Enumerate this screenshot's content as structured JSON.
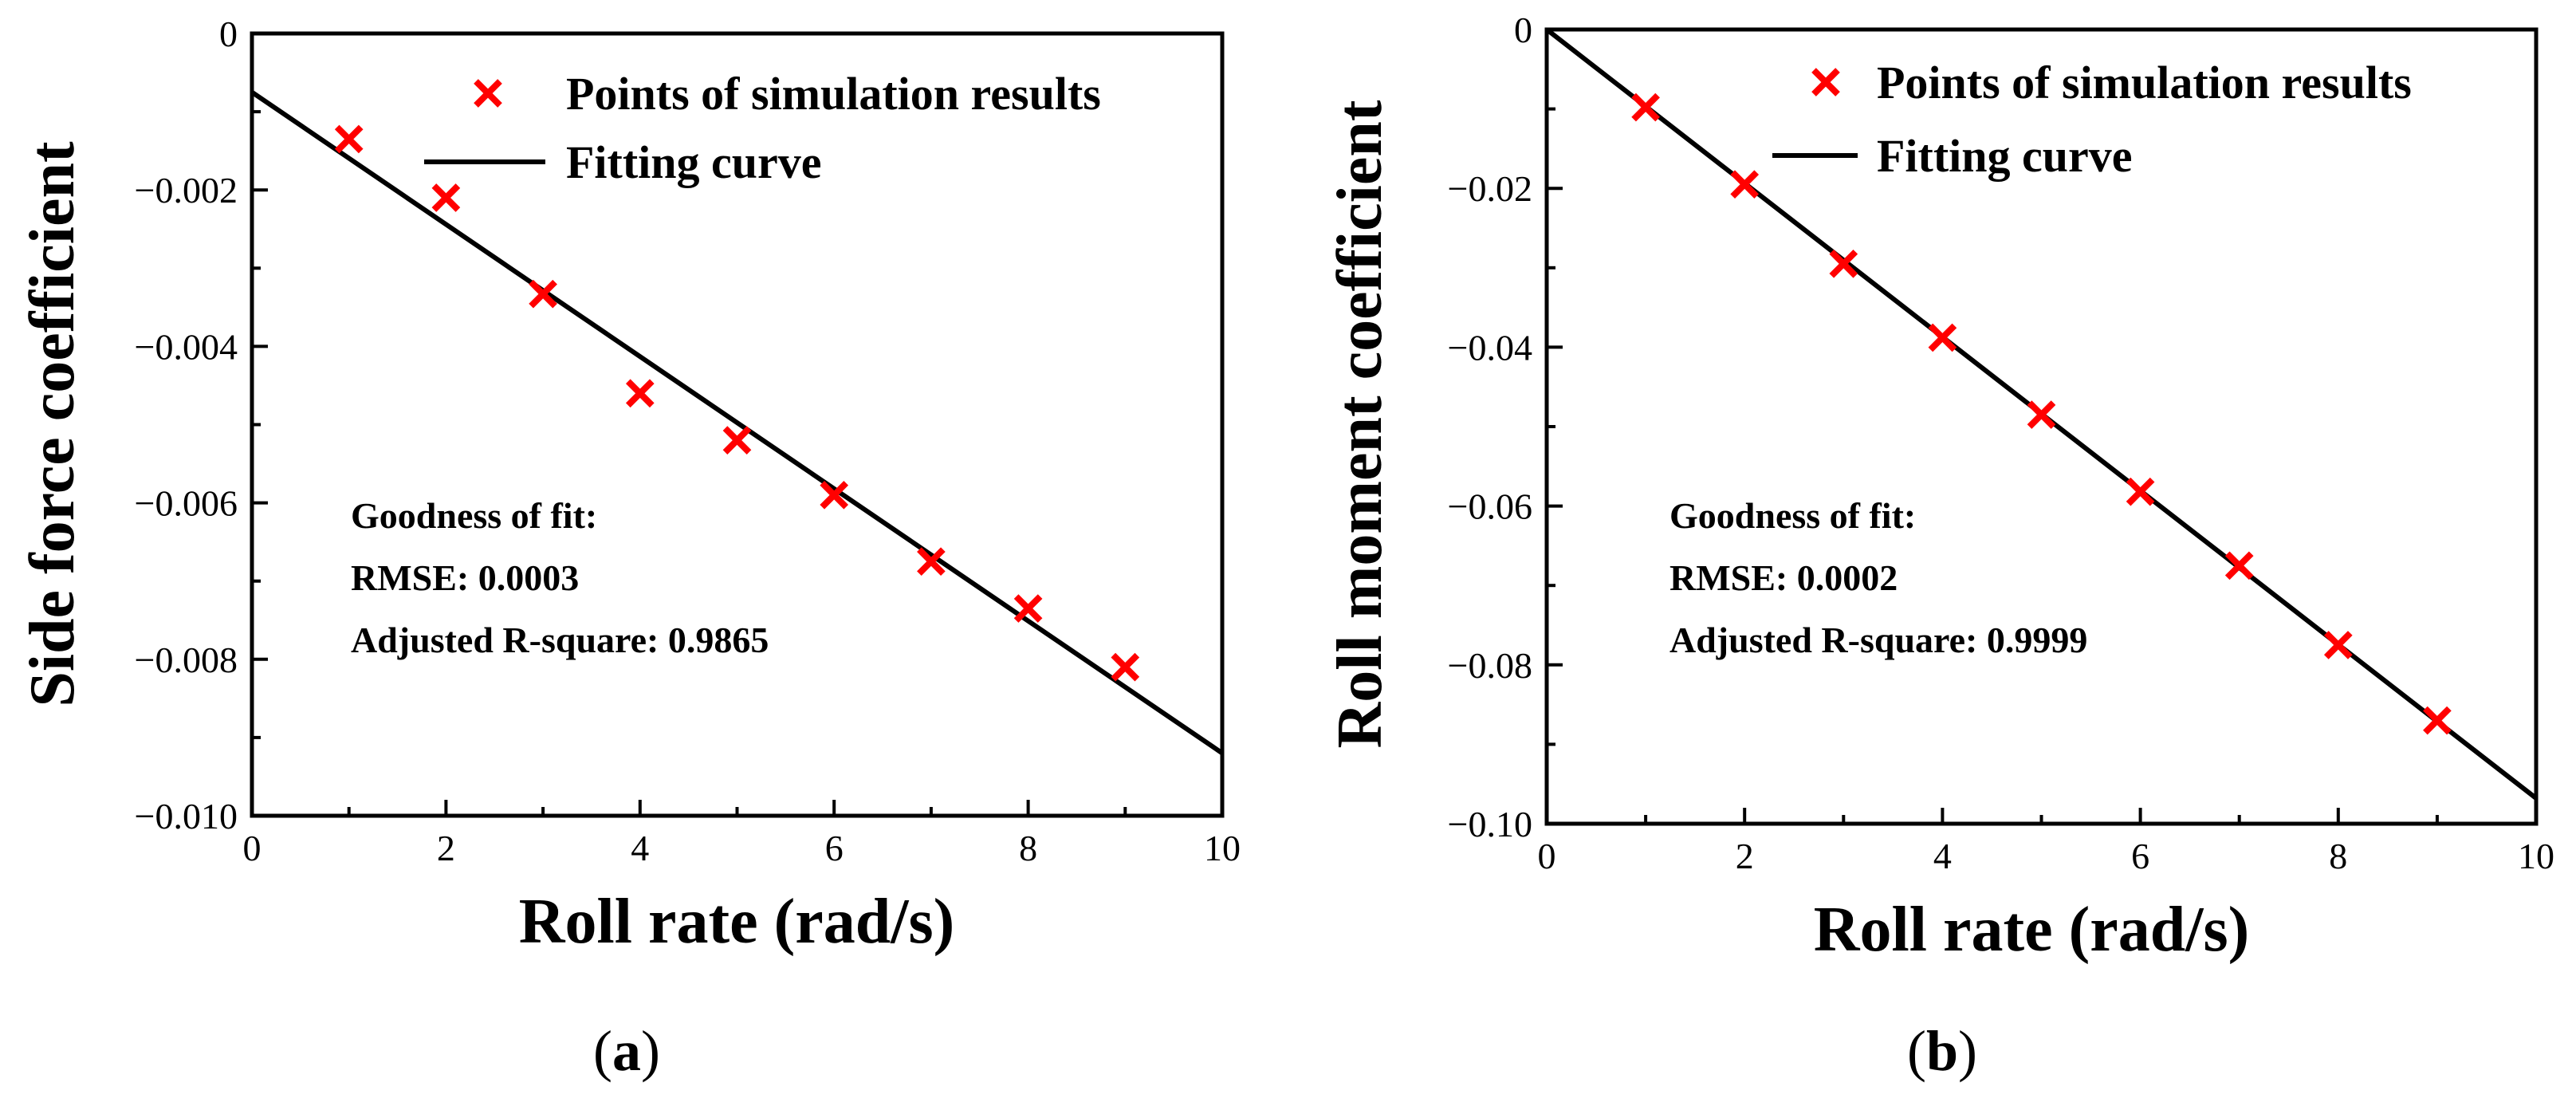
{
  "colors": {
    "marker": "#ff0000",
    "line": "#000000",
    "axis": "#000000"
  },
  "chart_data": [
    {
      "type": "scatter",
      "panel_label": "a",
      "xlabel": "Roll rate (rad/s)",
      "ylabel": "Side force coefficient",
      "xlim": [
        0,
        10
      ],
      "ylim": [
        -0.01,
        0
      ],
      "xticks": [
        "0",
        "2",
        "4",
        "6",
        "8",
        "10"
      ],
      "yticks": [
        "0",
        "−0.002",
        "−0.004",
        "−0.006",
        "−0.008",
        "−0.010"
      ],
      "series": [
        {
          "name": "Points of simulation results",
          "type": "scatter",
          "marker": "x",
          "x": [
            1,
            2,
            3,
            4,
            5,
            6,
            7,
            8,
            9
          ],
          "y": [
            -0.00135,
            -0.0021,
            -0.00333,
            -0.0046,
            -0.0052,
            -0.0059,
            -0.00675,
            -0.00735,
            -0.0081
          ]
        },
        {
          "name": "Fitting curve",
          "type": "line",
          "x": [
            0,
            10
          ],
          "y": [
            -0.00075,
            -0.0092
          ]
        }
      ],
      "legend": "top-right",
      "annotation": [
        "Goodness of fit:",
        "RMSE: 0.0003",
        "Adjusted R-square: 0.9865"
      ]
    },
    {
      "type": "scatter",
      "panel_label": "b",
      "xlabel": "Roll rate (rad/s)",
      "ylabel": "Roll moment coefficient",
      "xlim": [
        0,
        10
      ],
      "ylim": [
        -0.1,
        0
      ],
      "xticks": [
        "0",
        "2",
        "4",
        "6",
        "8",
        "10"
      ],
      "yticks": [
        "0",
        "−0.02",
        "−0.04",
        "−0.06",
        "−0.08",
        "−0.10"
      ],
      "series": [
        {
          "name": "Points of simulation results",
          "type": "scatter",
          "marker": "x",
          "x": [
            1,
            2,
            3,
            4,
            5,
            6,
            7,
            8,
            9
          ],
          "y": [
            -0.0098,
            -0.0195,
            -0.0295,
            -0.0388,
            -0.0485,
            -0.0582,
            -0.0675,
            -0.0775,
            -0.087
          ]
        },
        {
          "name": "Fitting curve",
          "type": "line",
          "x": [
            0,
            10
          ],
          "y": [
            0,
            -0.0968
          ]
        }
      ],
      "legend": "top-right",
      "annotation": [
        "Goodness of fit:",
        "RMSE: 0.0002",
        "Adjusted R-square: 0.9999"
      ]
    }
  ]
}
